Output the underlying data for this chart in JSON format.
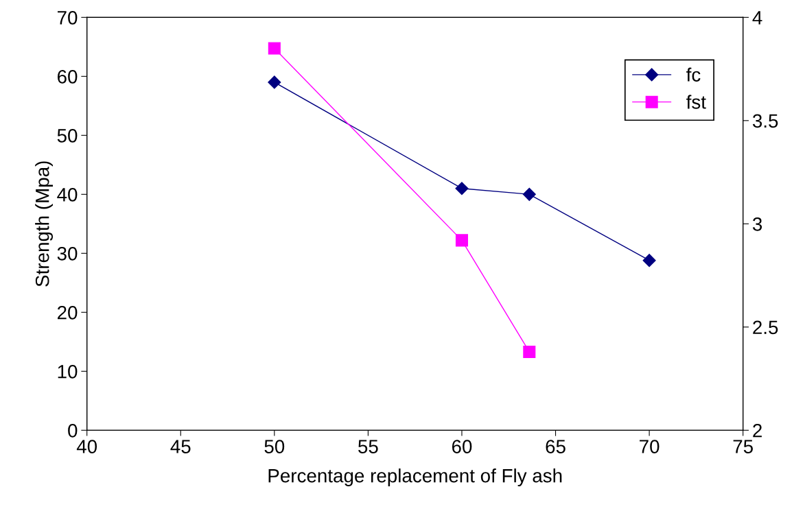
{
  "chart_data": {
    "type": "line",
    "xlabel": "Percentage replacement of Fly ash",
    "ylabel": "Strength (Mpa)",
    "xlim": [
      40,
      75
    ],
    "xticks": [
      40,
      45,
      50,
      55,
      60,
      65,
      70,
      75
    ],
    "ylim": [
      0,
      70
    ],
    "yticks": [
      0,
      10,
      20,
      30,
      40,
      50,
      60,
      70
    ],
    "y2lim": [
      2,
      4
    ],
    "y2ticks": [
      2,
      2.5,
      3,
      3.5,
      4
    ],
    "grid": false,
    "legend": "top right",
    "series": [
      {
        "name": "fc",
        "color": "#000080",
        "marker": "diamond",
        "x": [
          50,
          60,
          63.6,
          70
        ],
        "values": [
          59,
          41,
          40,
          28.8
        ]
      },
      {
        "name": "fst",
        "color": "#ff00ff",
        "marker": "square",
        "axis": "y2",
        "x": [
          50,
          60,
          63.6
        ],
        "values": [
          3.85,
          2.92,
          2.38
        ]
      }
    ]
  }
}
